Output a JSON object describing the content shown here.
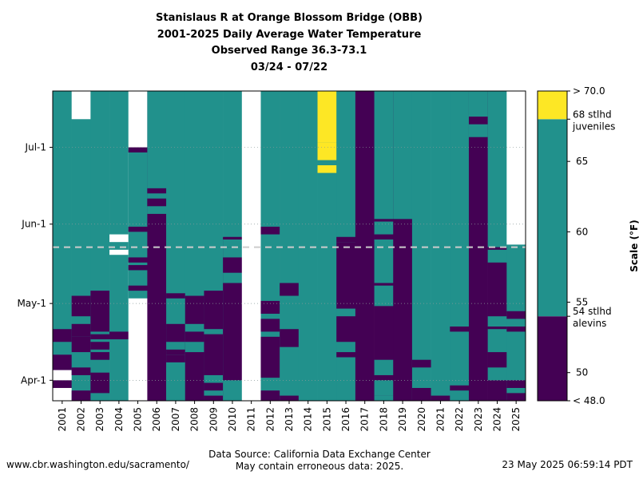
{
  "titles": [
    "Stanislaus R at Orange Blossom Bridge (OBB)",
    "2001-2025 Daily Average Water Temperature",
    "Observed Range 36.3-73.1",
    "03/24 - 07/22"
  ],
  "footer": {
    "left": "www.cbr.washington.edu/sacramento/",
    "center1": "Data Source: California Data Exchange Center",
    "center2": "May contain erroneous data: 2025.",
    "right": "23 May 2025 06:59:14 PDT"
  },
  "chart_data": {
    "type": "heatmap",
    "x_label": "",
    "y_label": "",
    "years": [
      "2001",
      "2002",
      "2003",
      "2004",
      "2005",
      "2006",
      "2007",
      "2008",
      "2009",
      "2010",
      "2011",
      "2012",
      "2013",
      "2014",
      "2015",
      "2016",
      "2017",
      "2018",
      "2019",
      "2020",
      "2021",
      "2022",
      "2023",
      "2024",
      "2025"
    ],
    "date_range": [
      "03/24",
      "07/22"
    ],
    "y_ticks": [
      "Apr-1",
      "May-1",
      "Jun-1",
      "Jul-1"
    ],
    "today_line": "05/23",
    "colors": {
      "alevins": "#440154",
      "mid": "#21918c",
      "juveniles": "#fde725",
      "missing": "#ffffff",
      "today_line": "#cccccc"
    },
    "colorbar": {
      "label": "Scale (°F)",
      "range": [
        48,
        70
      ],
      "ticks": [
        50,
        55,
        60,
        65
      ],
      "top_label": "> 70.0",
      "bottom_label": "< 48.0",
      "thresholds": [
        {
          "value": 54,
          "label": "54 stlhd\nalevins"
        },
        {
          "value": 68,
          "label": "68 stlhd\njuveniles"
        }
      ],
      "bands": [
        {
          "from": 48,
          "to": 54,
          "color": "#440154"
        },
        {
          "from": 54,
          "to": 68,
          "color": "#21918c"
        },
        {
          "from": 68,
          "to": 70,
          "color": "#fde725"
        }
      ]
    },
    "series_note": "Each column = one year; each cell = one day 03/24-07/22. Category: below 54F (dark purple), 54-68F (teal), above 68F (yellow), missing (white). Segments are [start_date, end_date].",
    "series": [
      {
        "year": "2001",
        "base": "mid",
        "segments": [
          [
            "missing",
            "03/24",
            "04/04"
          ],
          [
            "alevins",
            "03/29",
            "03/31"
          ],
          [
            "alevins",
            "04/05",
            "04/10"
          ],
          [
            "alevins",
            "04/16",
            "04/20"
          ]
        ]
      },
      {
        "year": "2002",
        "base": "mid",
        "segments": [
          [
            "missing",
            "07/12",
            "07/22"
          ],
          [
            "alevins",
            "03/24",
            "03/27"
          ],
          [
            "alevins",
            "04/03",
            "04/05"
          ],
          [
            "alevins",
            "04/12",
            "04/17"
          ],
          [
            "alevins",
            "04/18",
            "04/22"
          ],
          [
            "alevins",
            "04/26",
            "05/03"
          ]
        ]
      },
      {
        "year": "2003",
        "base": "mid",
        "segments": [
          [
            "alevins",
            "03/27",
            "04/03"
          ],
          [
            "alevins",
            "04/09",
            "04/11"
          ],
          [
            "alevins",
            "04/13",
            "04/15"
          ],
          [
            "alevins",
            "04/17",
            "04/18"
          ],
          [
            "alevins",
            "04/20",
            "05/05"
          ]
        ]
      },
      {
        "year": "2004",
        "base": "mid",
        "segments": [
          [
            "missing",
            "05/25",
            "05/27"
          ],
          [
            "missing",
            "05/20",
            "05/21"
          ],
          [
            "alevins",
            "04/17",
            "04/19"
          ]
        ]
      },
      {
        "year": "2005",
        "base": "missing",
        "segments": [
          [
            "mid",
            "05/03",
            "06/29"
          ],
          [
            "alevins",
            "06/29",
            "06/30"
          ],
          [
            "alevins",
            "05/29",
            "05/30"
          ],
          [
            "alevins",
            "05/17",
            "05/18"
          ],
          [
            "alevins",
            "05/14",
            "05/15"
          ],
          [
            "alevins",
            "05/06",
            "05/07"
          ]
        ]
      },
      {
        "year": "2006",
        "base": "alevins",
        "segments": [
          [
            "mid",
            "06/05",
            "07/22"
          ],
          [
            "alevins",
            "06/13",
            "06/14"
          ],
          [
            "alevins",
            "06/08",
            "06/10"
          ]
        ]
      },
      {
        "year": "2007",
        "base": "mid",
        "segments": [
          [
            "alevins",
            "04/11",
            "05/04"
          ],
          [
            "mid",
            "04/23",
            "05/02"
          ],
          [
            "mid",
            "04/13",
            "04/15"
          ],
          [
            "mid",
            "03/25",
            "04/05"
          ],
          [
            "alevins",
            "04/08",
            "04/10"
          ]
        ]
      },
      {
        "year": "2008",
        "base": "mid",
        "segments": [
          [
            "alevins",
            "03/24",
            "05/03"
          ],
          [
            "mid",
            "04/12",
            "04/15"
          ],
          [
            "mid",
            "04/20",
            "04/22"
          ]
        ]
      },
      {
        "year": "2009",
        "base": "mid",
        "segments": [
          [
            "alevins",
            "03/24",
            "05/05"
          ],
          [
            "mid",
            "03/26",
            "03/27"
          ],
          [
            "mid",
            "03/31",
            "04/02"
          ],
          [
            "mid",
            "04/19",
            "04/20"
          ]
        ]
      },
      {
        "year": "2010",
        "base": "mid",
        "segments": [
          [
            "alevins",
            "03/24",
            "05/26"
          ],
          [
            "mid",
            "03/24",
            "03/31"
          ],
          [
            "mid",
            "05/09",
            "05/12"
          ],
          [
            "mid",
            "05/19",
            "05/22"
          ],
          [
            "mid",
            "05/23",
            "05/25"
          ]
        ]
      },
      {
        "year": "2011",
        "base": "missing",
        "segments": []
      },
      {
        "year": "2012",
        "base": "mid",
        "segments": [
          [
            "alevins",
            "03/24",
            "03/27"
          ],
          [
            "alevins",
            "04/02",
            "04/17"
          ],
          [
            "alevins",
            "04/20",
            "04/24"
          ],
          [
            "alevins",
            "04/27",
            "05/01"
          ],
          [
            "alevins",
            "05/28",
            "05/30"
          ]
        ]
      },
      {
        "year": "2013",
        "base": "mid",
        "segments": [
          [
            "alevins",
            "03/24",
            "03/25"
          ],
          [
            "alevins",
            "04/14",
            "04/20"
          ],
          [
            "alevins",
            "05/04",
            "05/08"
          ]
        ]
      },
      {
        "year": "2014",
        "base": "mid",
        "segments": []
      },
      {
        "year": "2015",
        "base": "mid",
        "segments": [
          [
            "juveniles",
            "06/21",
            "06/23"
          ],
          [
            "juveniles",
            "06/26",
            "07/02"
          ],
          [
            "juveniles",
            "07/03",
            "07/22"
          ]
        ]
      },
      {
        "year": "2016",
        "base": "mid",
        "segments": [
          [
            "alevins",
            "04/10",
            "04/11"
          ],
          [
            "alevins",
            "04/16",
            "04/25"
          ],
          [
            "alevins",
            "04/29",
            "05/24"
          ],
          [
            "alevins",
            "05/25",
            "05/26"
          ]
        ]
      },
      {
        "year": "2017",
        "base": "alevins",
        "segments": []
      },
      {
        "year": "2018",
        "base": "alevins",
        "segments": [
          [
            "mid",
            "05/28",
            "06/01"
          ],
          [
            "mid",
            "05/09",
            "05/25"
          ],
          [
            "mid",
            "04/30",
            "05/07"
          ],
          [
            "mid",
            "04/03",
            "04/08"
          ],
          [
            "mid",
            "03/26",
            "03/31"
          ],
          [
            "mid",
            "03/24",
            "03/25"
          ],
          [
            "mid",
            "06/03",
            "07/22"
          ]
        ]
      },
      {
        "year": "2019",
        "base": "alevins",
        "segments": [
          [
            "mid",
            "06/03",
            "07/22"
          ]
        ]
      },
      {
        "year": "2020",
        "base": "mid",
        "segments": [
          [
            "alevins",
            "03/24",
            "03/28"
          ],
          [
            "alevins",
            "04/06",
            "04/08"
          ]
        ]
      },
      {
        "year": "2021",
        "base": "mid",
        "segments": [
          [
            "alevins",
            "03/24",
            "03/25"
          ]
        ]
      },
      {
        "year": "2022",
        "base": "mid",
        "segments": [
          [
            "alevins",
            "03/28",
            "03/29"
          ],
          [
            "alevins",
            "04/20",
            "04/21"
          ]
        ]
      },
      {
        "year": "2023",
        "base": "alevins",
        "segments": [
          [
            "mid",
            "07/13",
            "07/22"
          ],
          [
            "mid",
            "07/05",
            "07/09"
          ]
        ]
      },
      {
        "year": "2024",
        "base": "alevins",
        "segments": [
          [
            "mid",
            "05/23",
            "07/22"
          ],
          [
            "mid",
            "05/17",
            "05/21"
          ],
          [
            "mid",
            "04/12",
            "04/20"
          ],
          [
            "mid",
            "04/22",
            "04/25"
          ],
          [
            "mid",
            "04/01",
            "04/05"
          ]
        ]
      },
      {
        "year": "2025",
        "base": "mid",
        "segments": [
          [
            "missing",
            "05/24",
            "07/22"
          ],
          [
            "alevins",
            "03/24",
            "03/26"
          ],
          [
            "alevins",
            "03/29",
            "03/31"
          ],
          [
            "alevins",
            "04/20",
            "04/21"
          ],
          [
            "alevins",
            "04/25",
            "04/27"
          ]
        ]
      }
    ]
  }
}
